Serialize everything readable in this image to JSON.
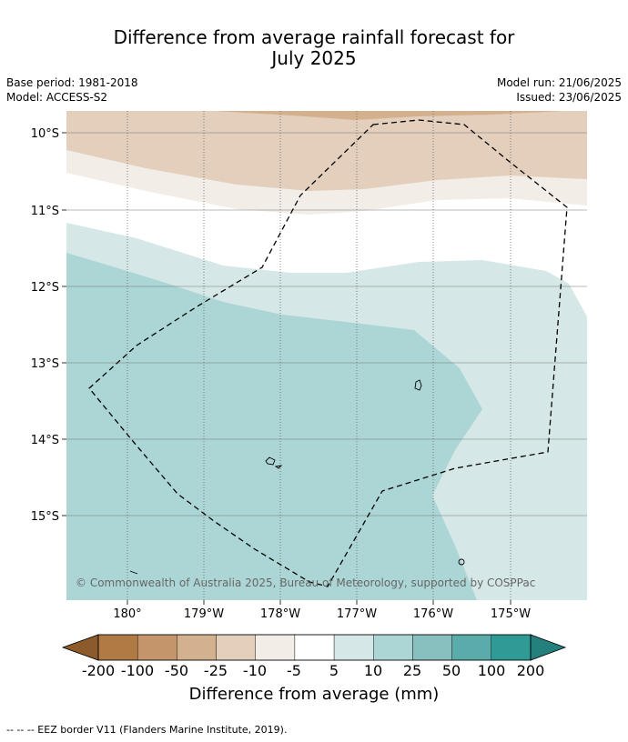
{
  "title_line1": "Difference from average rainfall forecast for",
  "title_line2": "July 2025",
  "meta": {
    "base_period": "Base period: 1981-2018",
    "model": "Model: ACCESS-S2",
    "model_run": "Model run: 21/06/2025",
    "issued": "Issued: 23/06/2025"
  },
  "map": {
    "lat_labels": [
      "10°S",
      "11°S",
      "12°S",
      "13°S",
      "14°S",
      "15°S"
    ],
    "lon_labels": [
      "180°",
      "179°W",
      "178°W",
      "177°W",
      "176°W",
      "175°W"
    ],
    "copyright": "© Commonwealth of Australia 2025, Bureau of Meteorology, supported by COSPPac",
    "border_style": "dashed"
  },
  "colorbar": {
    "ticks": [
      "-200",
      "-100",
      "-50",
      "-25",
      "-10",
      "-5",
      "5",
      "10",
      "25",
      "50",
      "100",
      "200"
    ],
    "colors": [
      "#8c5a2b",
      "#b07a45",
      "#c4956a",
      "#d4b18e",
      "#e3cfbc",
      "#f2ede7",
      "#ffffff",
      "#d5e8e7",
      "#acd6d6",
      "#88c0bf",
      "#5aacab",
      "#2f9a96",
      "#24807c"
    ],
    "label": "Difference from average (mm)"
  },
  "legend_note": "--  --  -- EEZ border V11 (Flanders Marine Institute, 2019)."
}
